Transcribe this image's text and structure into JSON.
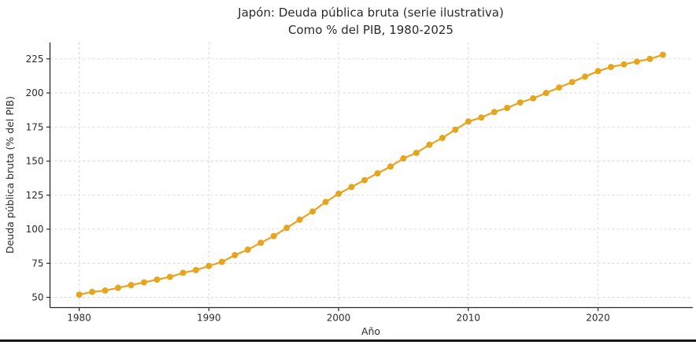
{
  "page": {
    "background": "#ffffff",
    "bottom_bar_color": "#171717"
  },
  "chart_data": {
    "type": "line",
    "title": "Japón: Deuda pública bruta (serie ilustrativa)",
    "subtitle": "Como % del PIB, 1980-2025",
    "xlabel": "Año",
    "ylabel": "Deuda pública bruta (% del PIB)",
    "x": [
      1980,
      1981,
      1982,
      1983,
      1984,
      1985,
      1986,
      1987,
      1988,
      1989,
      1990,
      1991,
      1992,
      1993,
      1994,
      1995,
      1996,
      1997,
      1998,
      1999,
      2000,
      2001,
      2002,
      2003,
      2004,
      2005,
      2006,
      2007,
      2008,
      2009,
      2010,
      2011,
      2012,
      2013,
      2014,
      2015,
      2016,
      2017,
      2018,
      2019,
      2020,
      2021,
      2022,
      2023,
      2024,
      2025
    ],
    "values": [
      52,
      54,
      55,
      57,
      59,
      61,
      63,
      65,
      68,
      70,
      73,
      76,
      81,
      85,
      90,
      95,
      101,
      107,
      113,
      120,
      126,
      131,
      136,
      141,
      146,
      152,
      156,
      162,
      167,
      173,
      179,
      182,
      186,
      189,
      193,
      196,
      200,
      204,
      208,
      212,
      216,
      219,
      221,
      223,
      225,
      228
    ],
    "xticks": [
      1980,
      1990,
      2000,
      2010,
      2020
    ],
    "yticks": [
      50,
      75,
      100,
      125,
      150,
      175,
      200,
      225
    ],
    "xlim": [
      1977.75,
      2027.25
    ],
    "ylim": [
      42.5,
      237
    ],
    "grid": true,
    "legend": "none",
    "line_color": "#e7a41e",
    "marker": "circle",
    "grid_color": "#d9d9d9",
    "axis_color": "#2a2a2a",
    "text_color": "#2b2b2b"
  }
}
